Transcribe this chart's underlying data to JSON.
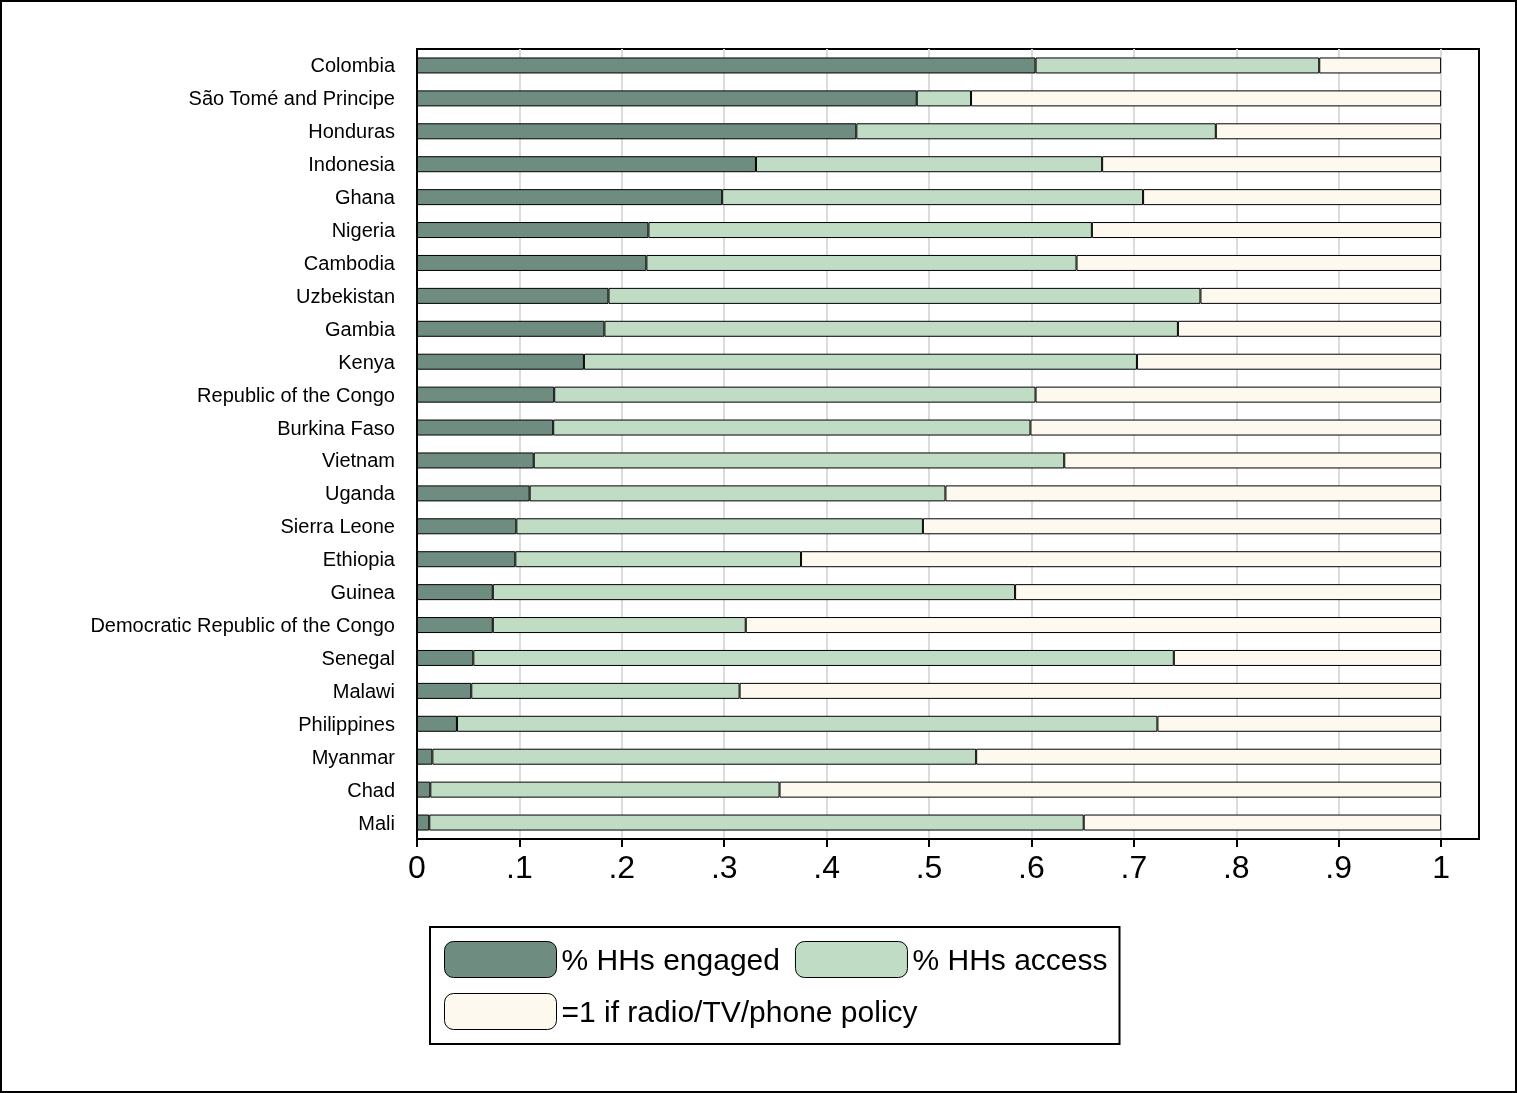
{
  "chart_data": {
    "type": "bar",
    "orientation": "horizontal",
    "stacked": true,
    "categories": [
      "Colombia",
      "São Tomé and Principe",
      "Honduras",
      "Indonesia",
      "Ghana",
      "Nigeria",
      "Cambodia",
      "Uzbekistan",
      "Gambia",
      "Kenya",
      "Republic of the Congo",
      "Burkina Faso",
      "Vietnam",
      "Uganda",
      "Sierra Leone",
      "Ethiopia",
      "Guinea",
      "Democratic Republic of the Congo",
      "Senegal",
      "Malawi",
      "Philippines",
      "Myanmar",
      "Chad",
      "Mali"
    ],
    "series": [
      {
        "name": "% HHs engaged",
        "color": "#6e8c80",
        "values": [
          0.604,
          0.488,
          0.429,
          0.331,
          0.298,
          0.226,
          0.224,
          0.187,
          0.183,
          0.163,
          0.134,
          0.133,
          0.114,
          0.11,
          0.097,
          0.096,
          0.074,
          0.074,
          0.055,
          0.053,
          0.039,
          0.015,
          0.013,
          0.012
        ]
      },
      {
        "name": "% HHs access",
        "color": "#c0dcc4",
        "values": [
          0.277,
          0.053,
          0.351,
          0.338,
          0.411,
          0.433,
          0.42,
          0.578,
          0.56,
          0.54,
          0.47,
          0.466,
          0.518,
          0.406,
          0.397,
          0.279,
          0.51,
          0.247,
          0.684,
          0.262,
          0.684,
          0.531,
          0.341,
          0.639
        ]
      },
      {
        "name": "=1 if radio/TV/phone policy",
        "color": "#fef9ee",
        "values": [
          0.119,
          0.459,
          0.22,
          0.331,
          0.291,
          0.341,
          0.356,
          0.235,
          0.257,
          0.297,
          0.396,
          0.401,
          0.368,
          0.484,
          0.506,
          0.625,
          0.416,
          0.679,
          0.261,
          0.685,
          0.277,
          0.454,
          0.646,
          0.349
        ]
      }
    ],
    "xlim": [
      0,
      1.037
    ],
    "xticks": [
      0,
      {
        "value": 0.1,
        "label": ".1"
      },
      {
        "value": 0.2,
        "label": ".2"
      },
      {
        "value": 0.3,
        "label": ".3"
      },
      {
        "value": 0.4,
        "label": ".4"
      },
      {
        "value": 0.5,
        "label": ".5"
      },
      {
        "value": 0.6,
        "label": ".6"
      },
      {
        "value": 0.7,
        "label": ".7"
      },
      {
        "value": 0.8,
        "label": ".8"
      },
      {
        "value": 0.9,
        "label": ".9"
      },
      1
    ],
    "grid": "x",
    "legend": "bottom"
  }
}
